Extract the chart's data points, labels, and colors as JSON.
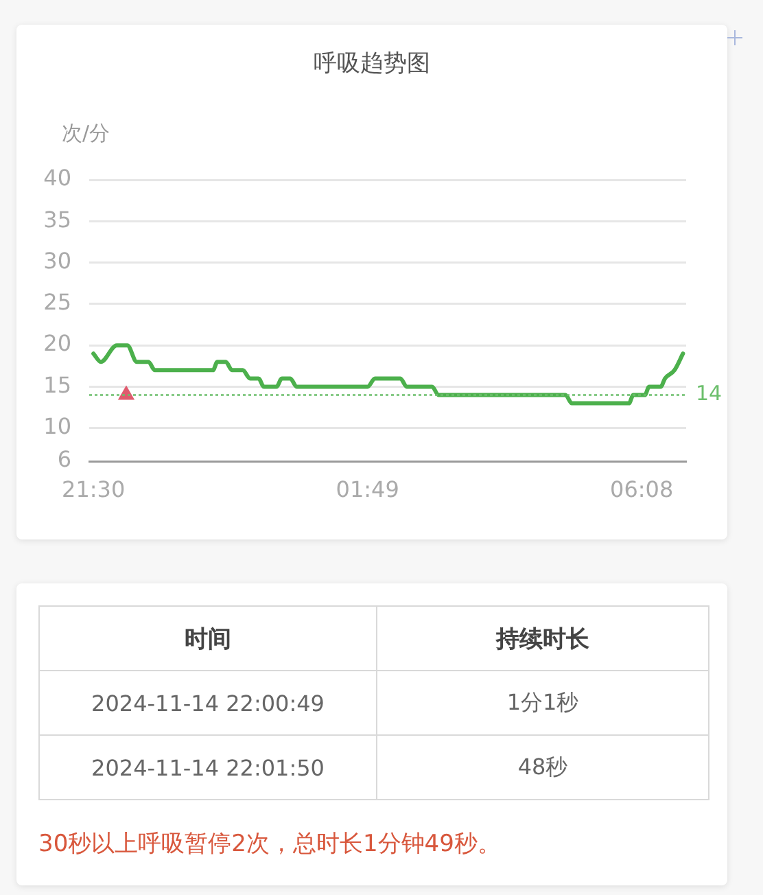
{
  "chart_data": [
    {
      "type": "line",
      "title": "呼吸趋势图",
      "ylabel": "次/分",
      "xlim": [
        "2024-11-14T21:26",
        "2024-11-15T06:50"
      ],
      "xticks": [
        {
          "value": "2024-11-14T21:30",
          "label": "21:30"
        },
        {
          "value": "2024-11-15T01:49",
          "label": "01:49"
        },
        {
          "value": "2024-11-15T06:08",
          "label": "06:08"
        }
      ],
      "ylim": [
        6,
        40
      ],
      "yticks": [
        6,
        10,
        15,
        20,
        25,
        30,
        35,
        40
      ],
      "grid": "y",
      "marker": "none",
      "ref_lines": [
        {
          "axis": "y",
          "value": 14,
          "label": "14",
          "color": "#6cbf6c",
          "line_style": "dotted"
        }
      ],
      "series": [
        {
          "type": "line",
          "color": "#4cb04c",
          "x": [
            "2024-11-14T21:30",
            "2024-11-14T21:37",
            "2024-11-14T21:52",
            "2024-11-14T22:02",
            "2024-11-14T22:11",
            "2024-11-14T22:22",
            "2024-11-14T22:28",
            "2024-11-14T23:23",
            "2024-11-14T23:27",
            "2024-11-14T23:35",
            "2024-11-14T23:41",
            "2024-11-14T23:51",
            "2024-11-14T23:58",
            "2024-11-15T00:06",
            "2024-11-15T00:11",
            "2024-11-15T00:23",
            "2024-11-15T00:28",
            "2024-11-15T00:36",
            "2024-11-15T00:42",
            "2024-11-15T01:49",
            "2024-11-15T01:56",
            "2024-11-15T02:20",
            "2024-11-15T02:26",
            "2024-11-15T02:50",
            "2024-11-15T02:56",
            "2024-11-15T04:56",
            "2024-11-15T05:02",
            "2024-11-15T05:56",
            "2024-11-15T06:00",
            "2024-11-15T06:11",
            "2024-11-15T06:15",
            "2024-11-15T06:26",
            "2024-11-15T06:30",
            "2024-11-15T06:39",
            "2024-11-15T06:47"
          ],
          "values": [
            19,
            18,
            20,
            20,
            18,
            18,
            17,
            17,
            18,
            18,
            17,
            17,
            16,
            16,
            15,
            15,
            16,
            16,
            15,
            15,
            16,
            16,
            15,
            15,
            14,
            14,
            13,
            13,
            14,
            14,
            15,
            15,
            16,
            17,
            19
          ]
        },
        {
          "type": "scatter",
          "marker": "triangle",
          "color": "#e05a6e",
          "x": [
            "2024-11-14T22:01"
          ],
          "values": [
            14
          ]
        }
      ]
    },
    {
      "type": "other",
      "categories": [
        "时间",
        "持续时长"
      ],
      "cell_labels": [
        [
          "2024-11-14 22:00:49",
          "1分1秒"
        ],
        [
          "2024-11-14 22:01:50",
          "48秒"
        ]
      ],
      "annotations": [
        "30秒以上呼吸暂停2次，总时长1分钟49秒。"
      ]
    }
  ]
}
